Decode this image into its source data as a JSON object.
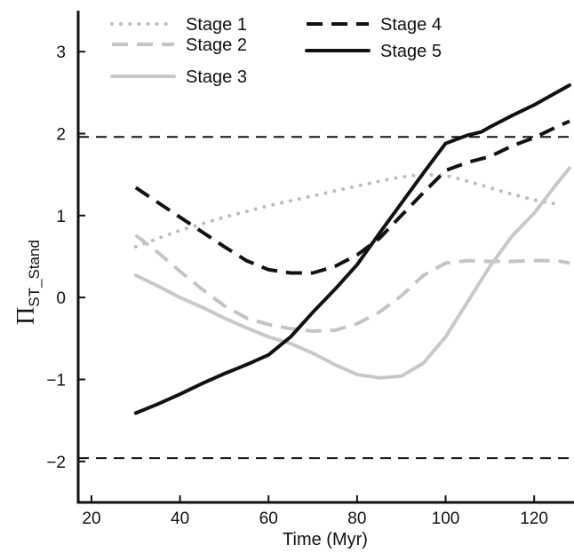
{
  "chart_data": {
    "type": "line",
    "title": "",
    "xlabel": "Time (Myr)",
    "ylabel": {
      "main": "Π",
      "sub": "ST_Stand"
    },
    "xlim": [
      17,
      129
    ],
    "ylim": [
      -2.5,
      3.5
    ],
    "xticks": [
      20,
      40,
      60,
      80,
      100,
      120
    ],
    "yticks": [
      -2,
      -1,
      0,
      1,
      2,
      3
    ],
    "ytick_labels": [
      "−2",
      "−1",
      "0",
      "1",
      "2",
      "3"
    ],
    "reference_lines": [
      1.96,
      -1.96
    ],
    "grid": false,
    "legend_position": "top",
    "series": [
      {
        "name": "Stage 1",
        "style": "dotted",
        "color": "#bdbdbd",
        "x": [
          30,
          35,
          40,
          45,
          50,
          55,
          60,
          65,
          70,
          75,
          80,
          85,
          90,
          95,
          100,
          105,
          110,
          115,
          120,
          125
        ],
        "y": [
          0.62,
          0.72,
          0.82,
          0.9,
          0.98,
          1.05,
          1.12,
          1.18,
          1.24,
          1.3,
          1.36,
          1.42,
          1.47,
          1.5,
          1.49,
          1.42,
          1.34,
          1.26,
          1.19,
          1.14
        ]
      },
      {
        "name": "Stage 2",
        "style": "dashed",
        "color": "#c4c4c4",
        "x": [
          30,
          35,
          40,
          45,
          50,
          55,
          60,
          65,
          70,
          75,
          80,
          85,
          90,
          95,
          100,
          105,
          110,
          115,
          120,
          125,
          128
        ],
        "y": [
          0.76,
          0.55,
          0.32,
          0.1,
          -0.1,
          -0.25,
          -0.33,
          -0.38,
          -0.41,
          -0.4,
          -0.32,
          -0.18,
          0.02,
          0.27,
          0.42,
          0.45,
          0.44,
          0.44,
          0.45,
          0.45,
          0.42
        ]
      },
      {
        "name": "Stage 3",
        "style": "solid",
        "color": "#c8c8c8",
        "x": [
          30,
          35,
          40,
          45,
          50,
          55,
          60,
          65,
          70,
          75,
          80,
          85,
          90,
          95,
          100,
          105,
          110,
          115,
          120,
          125,
          128
        ],
        "y": [
          0.27,
          0.14,
          0.0,
          -0.12,
          -0.25,
          -0.37,
          -0.48,
          -0.56,
          -0.68,
          -0.82,
          -0.94,
          -0.98,
          -0.96,
          -0.8,
          -0.48,
          -0.05,
          0.38,
          0.75,
          1.03,
          1.38,
          1.58
        ]
      },
      {
        "name": "Stage 4",
        "style": "dashed",
        "color": "#111111",
        "x": [
          30,
          35,
          40,
          45,
          50,
          55,
          60,
          65,
          70,
          75,
          80,
          85,
          90,
          95,
          100,
          105,
          110,
          115,
          120,
          125,
          128
        ],
        "y": [
          1.34,
          1.16,
          0.98,
          0.8,
          0.62,
          0.45,
          0.34,
          0.3,
          0.3,
          0.38,
          0.52,
          0.72,
          1.0,
          1.28,
          1.55,
          1.65,
          1.72,
          1.85,
          1.95,
          2.08,
          2.15
        ]
      },
      {
        "name": "Stage 5",
        "style": "solid",
        "color": "#111111",
        "x": [
          30,
          35,
          40,
          45,
          50,
          55,
          60,
          65,
          70,
          75,
          80,
          85,
          90,
          95,
          100,
          105,
          108,
          110,
          115,
          120,
          125,
          128
        ],
        "y": [
          -1.41,
          -1.3,
          -1.18,
          -1.05,
          -0.93,
          -0.82,
          -0.7,
          -0.48,
          -0.18,
          0.1,
          0.4,
          0.78,
          1.15,
          1.52,
          1.88,
          1.98,
          2.02,
          2.08,
          2.22,
          2.35,
          2.5,
          2.59
        ]
      }
    ]
  }
}
